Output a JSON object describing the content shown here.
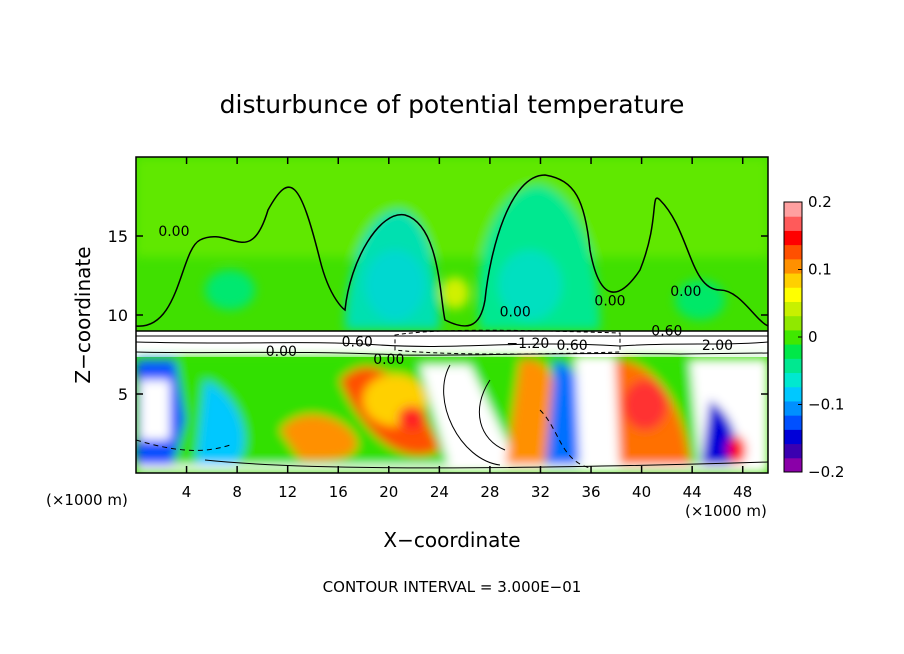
{
  "chart_data": {
    "type": "heatmap",
    "title": "disturbunce of potential temperature",
    "xlabel": "X−coordinate",
    "ylabel": "Z−coordinate",
    "x_unit_label": "(×1000 m)",
    "y_unit_label": "(×1000 m)",
    "xlim": [
      0,
      50
    ],
    "ylim": [
      0,
      20
    ],
    "x_ticks": [
      "4",
      "8",
      "12",
      "16",
      "20",
      "24",
      "28",
      "32",
      "36",
      "40",
      "44",
      "48"
    ],
    "x_tick_values": [
      4,
      8,
      12,
      16,
      20,
      24,
      28,
      32,
      36,
      40,
      44,
      48
    ],
    "y_ticks": [
      "5",
      "10",
      "15"
    ],
    "y_tick_values": [
      5,
      10,
      15
    ],
    "colorbar": {
      "min": -0.2,
      "max": 0.2,
      "tick_labels": [
        "0.2",
        "0.1",
        "0",
        "−0.1",
        "−0.2"
      ],
      "tick_values": [
        0.2,
        0.1,
        0,
        -0.1,
        -0.2
      ],
      "colors": [
        "#8a00a8",
        "#3a00b0",
        "#0000d8",
        "#0050ff",
        "#0090ff",
        "#00c8ff",
        "#00e8d0",
        "#00e890",
        "#00e848",
        "#40e800",
        "#90e800",
        "#c8f000",
        "#ffff00",
        "#ffd000",
        "#ff9000",
        "#ff5000",
        "#ff0000",
        "#ff5a5a",
        "#ffa0a0"
      ]
    },
    "contour_labels": [
      {
        "text": "0.00",
        "x": 3,
        "y": 15
      },
      {
        "text": "0.00",
        "x": 30,
        "y": 9.9
      },
      {
        "text": "0.00",
        "x": 37.5,
        "y": 10.6
      },
      {
        "text": "0.00",
        "x": 43.5,
        "y": 11.2
      },
      {
        "text": "0.60",
        "x": 42,
        "y": 8.7
      },
      {
        "text": "0.60",
        "x": 17.5,
        "y": 8.0
      },
      {
        "text": "−1.20",
        "x": 31,
        "y": 7.9
      },
      {
        "text": "0.60",
        "x": 34.5,
        "y": 7.8
      },
      {
        "text": "0.00",
        "x": 11.5,
        "y": 7.4
      },
      {
        "text": "0.00",
        "x": 20,
        "y": 6.9
      },
      {
        "text": "2.00",
        "x": 46,
        "y": 7.8
      }
    ],
    "grid": false,
    "legend": "right"
  },
  "footer": {
    "contour_interval": "CONTOUR INTERVAL = 3.000E−01"
  }
}
